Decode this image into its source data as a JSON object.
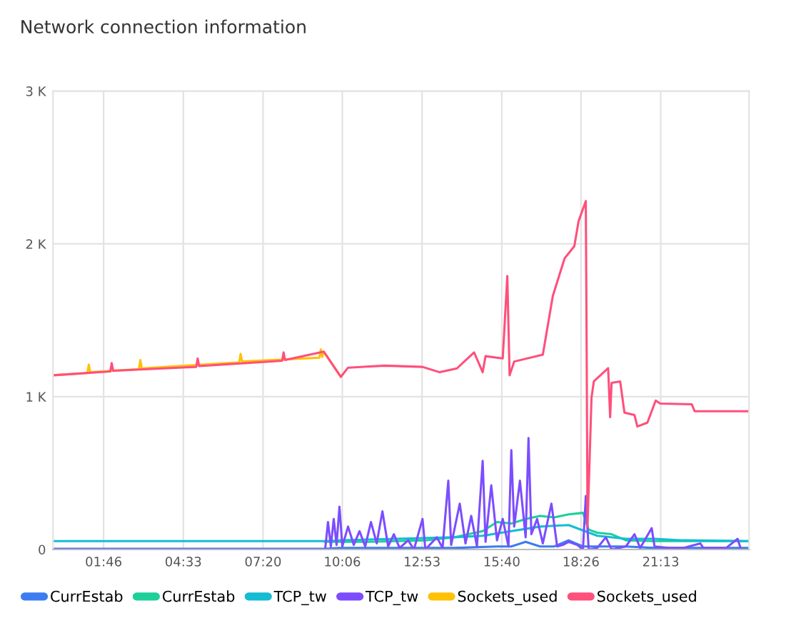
{
  "chart_data": {
    "type": "line",
    "title": "Network connection information",
    "xlim": [
      0,
      24.3
    ],
    "ylim": [
      0,
      3000
    ],
    "xticks": [
      {
        "value": 1.767,
        "label": "01:46"
      },
      {
        "value": 4.55,
        "label": "04:33"
      },
      {
        "value": 7.333,
        "label": "07:20"
      },
      {
        "value": 10.1,
        "label": "10:06"
      },
      {
        "value": 12.883,
        "label": "12:53"
      },
      {
        "value": 15.667,
        "label": "15:40"
      },
      {
        "value": 18.433,
        "label": "18:26"
      },
      {
        "value": 21.217,
        "label": "21:13"
      }
    ],
    "yticks": [
      0,
      {
        "value": 1000,
        "label": "1 K"
      },
      {
        "value": 2000,
        "label": "2 K"
      },
      {
        "value": 3000,
        "label": "3 K"
      }
    ],
    "grid": true,
    "legend": "bottom",
    "marker": "none",
    "line_style": "solid",
    "series": [
      {
        "name": "CurrEstab",
        "color": "#3b7cf0",
        "x": [
          0,
          9.5,
          10.0,
          12.0,
          13.0,
          14.0,
          15.5,
          16.0,
          16.5,
          17.0,
          17.5,
          18.0,
          18.5,
          19.0,
          20.0,
          21.0,
          22.0,
          24.3
        ],
        "values": [
          5,
          5,
          10,
          10,
          10,
          10,
          20,
          20,
          50,
          20,
          20,
          60,
          20,
          20,
          20,
          10,
          10,
          10
        ]
      },
      {
        "name": "CurrEstab",
        "color": "#1ecf9a",
        "x": [
          9.5,
          11.0,
          13.0,
          14.0,
          15.0,
          15.5,
          16.0,
          16.5,
          17.0,
          17.5,
          18.0,
          18.5,
          18.7,
          19.0,
          19.5,
          20.0,
          21.0,
          22.0,
          24.3
        ],
        "values": [
          50,
          50,
          60,
          80,
          120,
          180,
          170,
          200,
          220,
          210,
          230,
          240,
          130,
          110,
          100,
          60,
          55,
          55,
          55
        ]
      },
      {
        "name": "TCP_tw",
        "color": "#14bcd4",
        "x": [
          0,
          9.5,
          10.0,
          12.0,
          14.0,
          15.0,
          16.0,
          17.0,
          18.0,
          19.0,
          20.0,
          21.0,
          22.0,
          24.3
        ],
        "values": [
          55,
          55,
          60,
          70,
          80,
          90,
          120,
          150,
          160,
          90,
          70,
          70,
          60,
          55
        ]
      },
      {
        "name": "TCP_tw",
        "color": "#7c4dff",
        "x": [
          0,
          9.5,
          9.6,
          9.7,
          9.8,
          9.9,
          10.0,
          10.1,
          10.3,
          10.5,
          10.7,
          10.9,
          11.1,
          11.3,
          11.5,
          11.7,
          11.9,
          12.1,
          12.4,
          12.6,
          12.9,
          13.0,
          13.4,
          13.6,
          13.8,
          13.9,
          14.2,
          14.4,
          14.6,
          14.8,
          15.0,
          15.1,
          15.3,
          15.5,
          15.7,
          15.9,
          16.0,
          16.1,
          16.3,
          16.5,
          16.6,
          16.7,
          16.9,
          17.1,
          17.4,
          17.6,
          17.8,
          18.0,
          18.3,
          18.5,
          18.6,
          18.7,
          19.0,
          19.3,
          19.5,
          20.0,
          20.3,
          20.5,
          20.9,
          21.0,
          21.5,
          22.0,
          22.6,
          22.7,
          23.5,
          23.9,
          24.0
        ],
        "values": [
          0,
          0,
          180,
          20,
          200,
          30,
          280,
          20,
          150,
          30,
          120,
          20,
          180,
          40,
          250,
          20,
          100,
          10,
          60,
          0,
          200,
          0,
          80,
          10,
          450,
          30,
          300,
          40,
          220,
          20,
          580,
          50,
          420,
          60,
          200,
          20,
          650,
          150,
          450,
          80,
          730,
          100,
          200,
          40,
          300,
          20,
          30,
          50,
          30,
          0,
          350,
          0,
          10,
          80,
          0,
          20,
          100,
          10,
          140,
          20,
          10,
          10,
          40,
          10,
          10,
          70,
          10
        ]
      },
      {
        "name": "Sockets_used",
        "color": "#ffc107",
        "x": [
          0,
          1.2,
          1.25,
          1.3,
          3.0,
          3.05,
          3.1,
          6.5,
          6.55,
          6.6,
          9.3,
          9.35,
          9.4,
          9.45,
          10.05
        ],
        "values": [
          1140,
          1155,
          1210,
          1160,
          1180,
          1240,
          1185,
          1225,
          1280,
          1230,
          1255,
          1310,
          1260,
          1295,
          1130
        ]
      },
      {
        "name": "Sockets_used",
        "color": "#ff4f7b",
        "x": [
          0,
          2.0,
          2.05,
          2.1,
          5.0,
          5.05,
          5.1,
          8.0,
          8.05,
          8.1,
          9.45,
          10.05,
          10.3,
          11.6,
          12.9,
          13.5,
          14.1,
          14.7,
          15.0,
          15.1,
          15.7,
          15.86,
          15.94,
          16.1,
          17.1,
          17.45,
          17.86,
          18.2,
          18.35,
          18.6,
          18.63,
          18.66,
          18.8,
          18.88,
          19.38,
          19.45,
          19.5,
          19.8,
          19.95,
          20.3,
          20.4,
          20.75,
          21.04,
          21.2,
          22.3,
          22.4,
          24.3
        ],
        "values": [
          1140,
          1165,
          1220,
          1170,
          1195,
          1250,
          1200,
          1235,
          1290,
          1240,
          1295,
          1130,
          1190,
          1203,
          1195,
          1160,
          1185,
          1290,
          1160,
          1265,
          1250,
          1790,
          1140,
          1230,
          1275,
          1660,
          1905,
          1985,
          2150,
          2280,
          1310,
          150,
          995,
          1100,
          1187,
          865,
          1090,
          1100,
          895,
          880,
          805,
          830,
          975,
          955,
          950,
          905,
          905
        ]
      }
    ]
  }
}
